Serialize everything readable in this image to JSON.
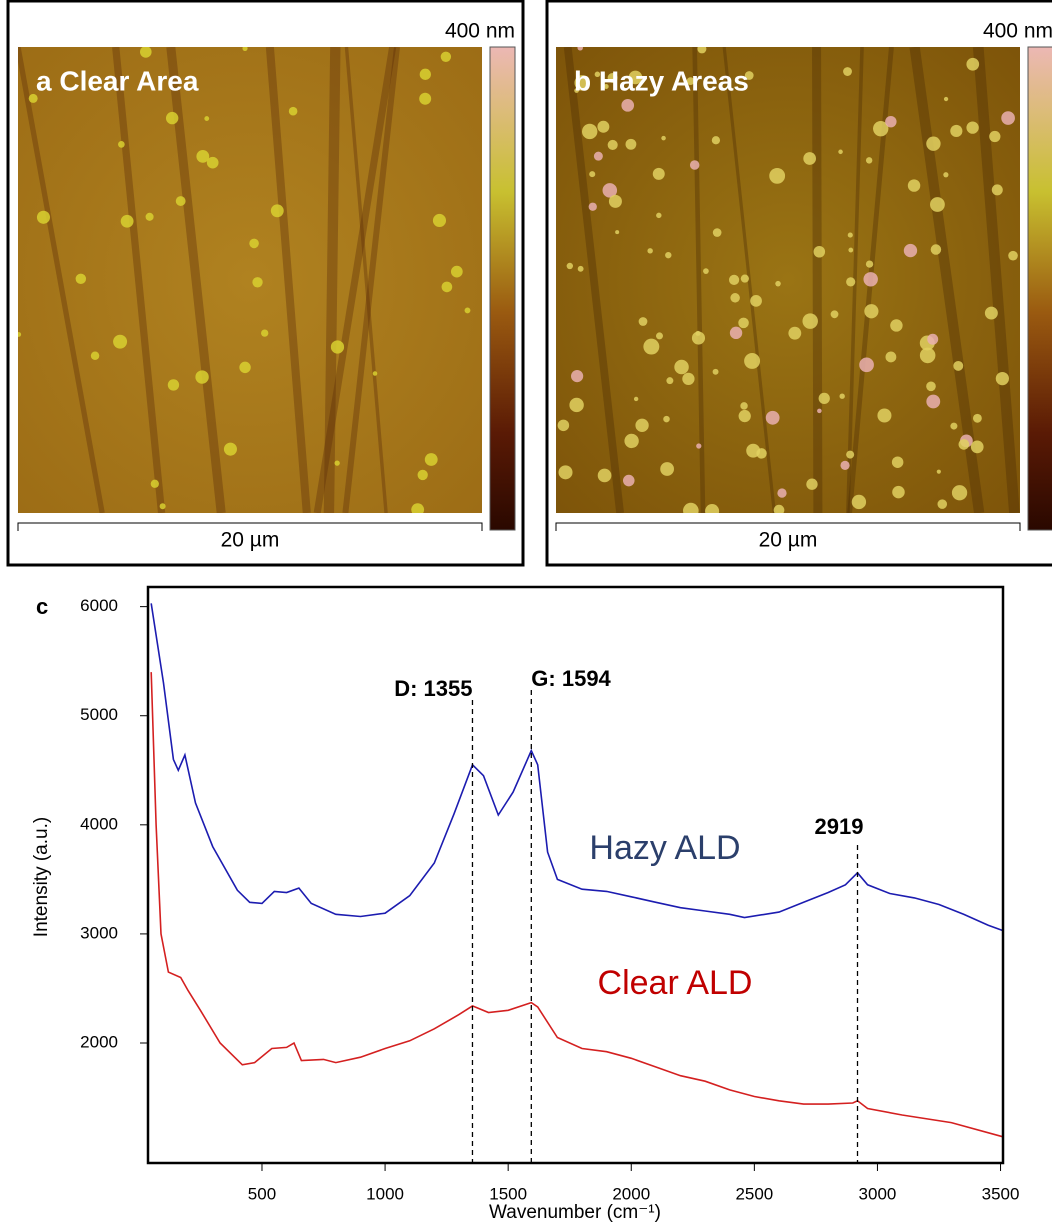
{
  "panels": [
    {
      "label": "a Clear Area",
      "colorbar_max": "400 nm",
      "scale_bar": "20 µm"
    },
    {
      "label": "b  Hazy Areas",
      "colorbar_max": "400 nm",
      "scale_bar": "20 µm"
    }
  ],
  "chart_data": {
    "type": "line",
    "panel_label": "c",
    "x_label": "Wavenumber (cm⁻¹)",
    "y_label": "Intensity (a.u.)",
    "xlim": [
      37,
      3510
    ],
    "ylim": [
      900,
      6180
    ],
    "xticks": [
      500,
      1000,
      1500,
      2000,
      2500,
      3000,
      3500
    ],
    "yticks": [
      2000,
      3000,
      4000,
      5000,
      6000
    ],
    "series": [
      {
        "name": "Hazy ALD",
        "color": "#1c1cb0",
        "label_color": "#2b3f6b",
        "x": [
          50,
          100,
          140,
          160,
          187,
          230,
          300,
          400,
          450,
          500,
          550,
          600,
          650,
          700,
          800,
          900,
          1000,
          1100,
          1200,
          1280,
          1355,
          1400,
          1460,
          1520,
          1594,
          1620,
          1660,
          1700,
          1800,
          1900,
          2000,
          2100,
          2200,
          2300,
          2400,
          2460,
          2600,
          2700,
          2800,
          2870,
          2919,
          2960,
          3050,
          3150,
          3250,
          3350,
          3450,
          3510
        ],
        "values": [
          6030,
          5300,
          4600,
          4500,
          4640,
          4200,
          3800,
          3400,
          3290,
          3280,
          3390,
          3380,
          3420,
          3280,
          3180,
          3160,
          3190,
          3350,
          3650,
          4100,
          4550,
          4450,
          4090,
          4300,
          4680,
          4550,
          3750,
          3500,
          3410,
          3390,
          3340,
          3290,
          3240,
          3210,
          3180,
          3150,
          3200,
          3290,
          3380,
          3450,
          3560,
          3450,
          3370,
          3330,
          3270,
          3180,
          3080,
          3030
        ]
      },
      {
        "name": "Clear ALD",
        "color": "#d42020",
        "label_color": "#c00000",
        "x": [
          50,
          70,
          90,
          120,
          170,
          200,
          250,
          330,
          420,
          470,
          540,
          600,
          630,
          660,
          750,
          800,
          900,
          1000,
          1100,
          1200,
          1300,
          1355,
          1420,
          1500,
          1594,
          1620,
          1700,
          1800,
          1900,
          2000,
          2100,
          2200,
          2300,
          2400,
          2500,
          2600,
          2700,
          2800,
          2900,
          2919,
          2960,
          3100,
          3300,
          3510
        ],
        "values": [
          5400,
          4000,
          3000,
          2650,
          2600,
          2480,
          2300,
          2000,
          1800,
          1820,
          1950,
          1960,
          2000,
          1840,
          1850,
          1820,
          1870,
          1950,
          2020,
          2130,
          2260,
          2340,
          2280,
          2300,
          2370,
          2330,
          2050,
          1950,
          1920,
          1860,
          1780,
          1700,
          1650,
          1570,
          1510,
          1470,
          1440,
          1440,
          1450,
          1470,
          1400,
          1340,
          1270,
          1140
        ]
      }
    ],
    "annotations": [
      {
        "text": "D: 1355",
        "x": 1355
      },
      {
        "text": "G: 1594",
        "x": 1594
      },
      {
        "text": "2919",
        "x": 2919
      }
    ]
  }
}
